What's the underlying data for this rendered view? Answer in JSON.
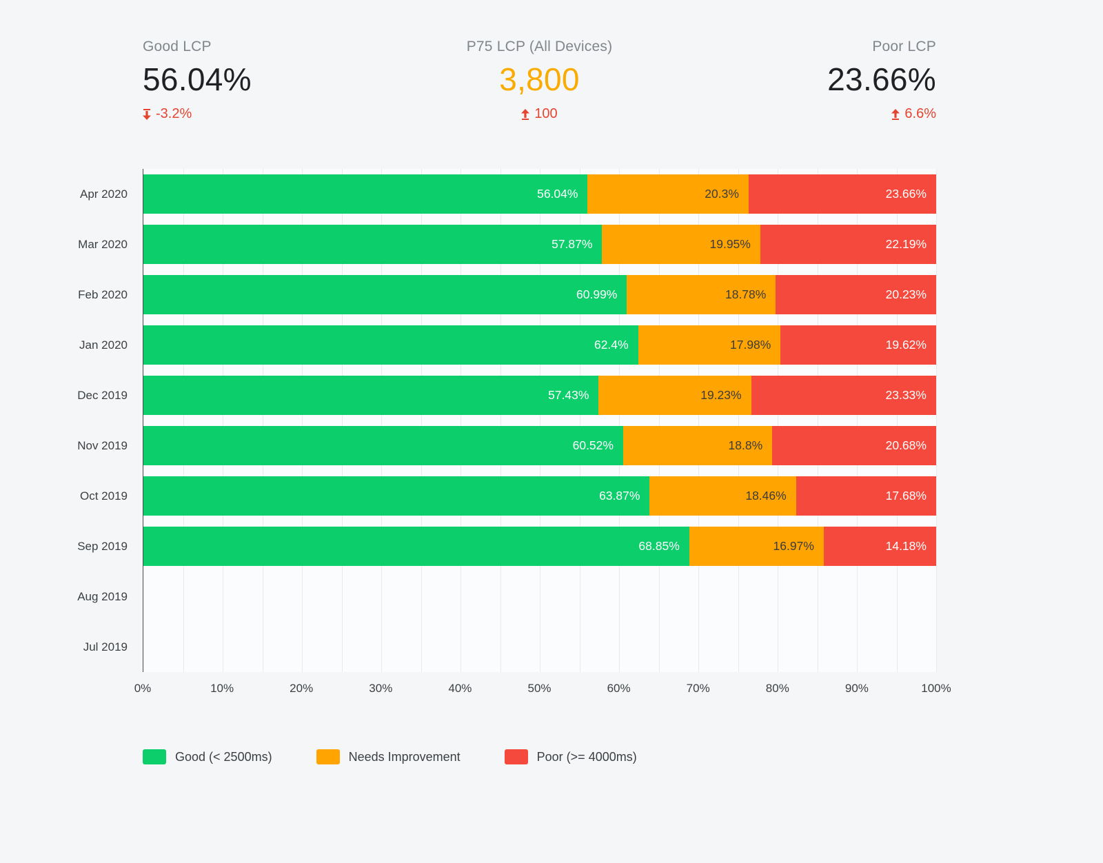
{
  "kpis": [
    {
      "label": "Good LCP",
      "value": "56.04%",
      "delta": "-3.2%",
      "direction": "down",
      "value_color": "#202124",
      "delta_color": "#e5452f"
    },
    {
      "label": "P75 LCP (All Devices)",
      "value": "3,800",
      "delta": "100",
      "direction": "up",
      "value_color": "#f9ab00",
      "delta_color": "#e5452f"
    },
    {
      "label": "Poor LCP",
      "value": "23.66%",
      "delta": "6.6%",
      "direction": "up",
      "value_color": "#202124",
      "delta_color": "#e5452f"
    }
  ],
  "chart_data": {
    "type": "bar",
    "orientation": "horizontal",
    "stacked": true,
    "categories": [
      "Apr 2020",
      "Mar 2020",
      "Feb 2020",
      "Jan 2020",
      "Dec 2019",
      "Nov 2019",
      "Oct 2019",
      "Sep 2019",
      "Aug 2019",
      "Jul 2019"
    ],
    "series": [
      {
        "name": "Good (< 2500ms)",
        "color": "#0cce6b",
        "label_color": "#ffffff",
        "values": [
          56.04,
          57.87,
          60.99,
          62.4,
          57.43,
          60.52,
          63.87,
          68.85,
          null,
          null
        ]
      },
      {
        "name": "Needs Improvement",
        "color": "#ffa400",
        "label_color": "#3c3c3c",
        "values": [
          20.3,
          19.95,
          18.78,
          17.98,
          19.23,
          18.8,
          18.46,
          16.97,
          null,
          null
        ]
      },
      {
        "name": "Poor (>= 4000ms)",
        "color": "#f4493c",
        "label_color": "#ffffff",
        "values": [
          23.66,
          22.19,
          20.23,
          19.62,
          23.33,
          20.68,
          17.68,
          14.18,
          null,
          null
        ]
      }
    ],
    "xlim": [
      0,
      100
    ],
    "x_ticks": [
      "0%",
      "10%",
      "20%",
      "30%",
      "40%",
      "50%",
      "60%",
      "70%",
      "80%",
      "90%",
      "100%"
    ],
    "grid": "vertical minor lines every 5%",
    "legend_position": "bottom-left",
    "value_label_format": "inside-right, value + %"
  }
}
